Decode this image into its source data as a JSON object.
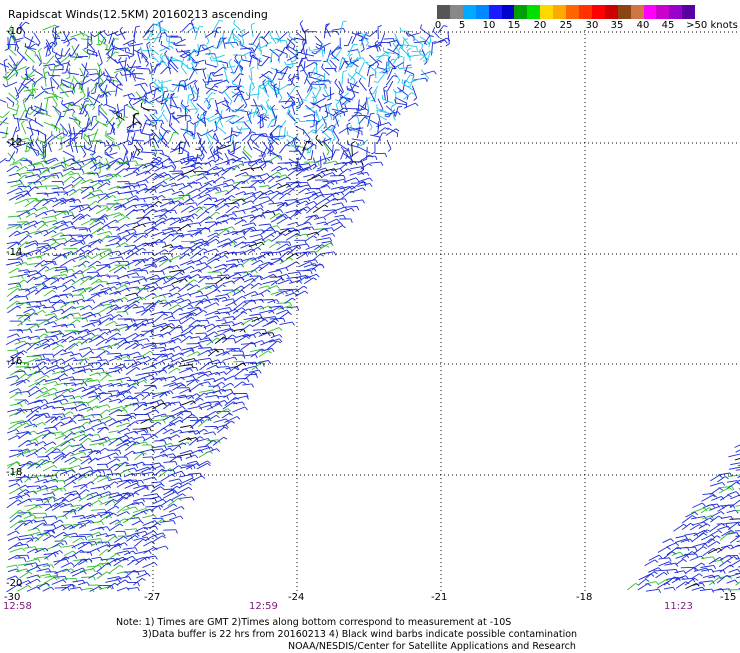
{
  "title": "Rapidscat Winds(12.5KM) 20160213 ascending",
  "colorbar": {
    "colors": [
      "#555555",
      "#888888",
      "#00aaff",
      "#0088ff",
      "#1a1aff",
      "#0000cc",
      "#00a000",
      "#00e000",
      "#ffd800",
      "#ffaa00",
      "#ff6600",
      "#ff3300",
      "#ff0000",
      "#cc0000",
      "#8b4513",
      "#cc7744",
      "#ff00ff",
      "#cc00cc",
      "#9900cc",
      "#5a00a0"
    ],
    "labels": [
      "0",
      "5",
      "10",
      "15",
      "20",
      "25",
      "30",
      "35",
      "40",
      "45",
      ">50 knots"
    ]
  },
  "lat_labels": [
    "-10",
    "-12",
    "-14",
    "-16",
    "-18",
    "-20"
  ],
  "lon_labels": [
    "-30",
    "-27",
    "-24",
    "-21",
    "-18",
    "-15"
  ],
  "time_labels": [
    "12:58",
    "12:59",
    "11:23"
  ],
  "notes": [
    "Note: 1) Times are GMT 2)Times along bottom correspond to measurement at -10S",
    "3)Data buffer is 22 hrs from 20160213 4) Black wind barbs indicate possible contamination",
    "NOAA/NESDIS/Center for Satellite Applications and Research"
  ],
  "colors": {
    "barb_blue": "#1a2bd9",
    "barb_cyan": "#22c8e8",
    "barb_green": "#2fc02f",
    "barb_black": "#000000",
    "grid": "#000000"
  }
}
